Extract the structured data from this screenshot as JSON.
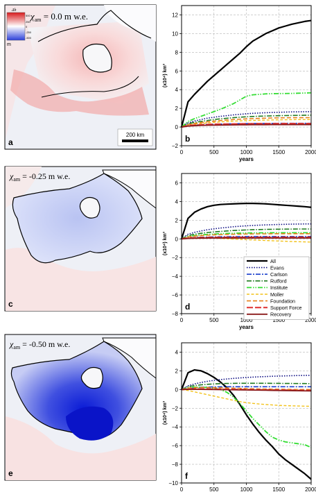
{
  "colors": {
    "All": "#000000",
    "Evans": "#0a0a80",
    "Carlson": "#1a3fcc",
    "Rutford": "#1f7a1f",
    "Institute": "#33dd33",
    "Moller": "#f2c21b",
    "Foundation": "#e6801a",
    "Support Force": "#e03a3a",
    "Recovery": "#8b1a1a"
  },
  "maps": [
    {
      "letter": "a",
      "chi_label": "χ",
      "chi_sub": "am",
      "chi_value": " = 0.0 m w.e.",
      "scalebar": "200 km",
      "colorbar": {
        "title": "Δh",
        "unit": "m",
        "ticks": [
          "500",
          "250",
          "0",
          "-250",
          "-500"
        ]
      }
    },
    {
      "letter": "c",
      "chi_label": "χ",
      "chi_sub": "am",
      "chi_value": " = -0.25 m w.e."
    },
    {
      "letter": "e",
      "chi_label": "χ",
      "chi_sub": "am",
      "chi_value": " = -0.50 m w.e."
    }
  ],
  "chart_data": [
    {
      "panel": "b",
      "type": "line",
      "xlabel": "years",
      "ylabel": "(x10⁴) km³",
      "xlim": [
        0,
        2000
      ],
      "ylim": [
        -2,
        13
      ],
      "xticks": [
        0,
        500,
        1000,
        1500,
        2000
      ],
      "yticks": [
        -2,
        0,
        2,
        4,
        6,
        8,
        10,
        12
      ],
      "grid": true,
      "x": [
        0,
        100,
        200,
        300,
        400,
        500,
        600,
        700,
        800,
        900,
        1000,
        1100,
        1200,
        1300,
        1400,
        1500,
        1600,
        1700,
        1800,
        1900,
        2000
      ],
      "series": [
        {
          "name": "All",
          "values": [
            0,
            2.7,
            3.5,
            4.2,
            4.9,
            5.5,
            6.1,
            6.7,
            7.3,
            7.9,
            8.6,
            9.2,
            9.6,
            10.0,
            10.3,
            10.6,
            10.8,
            11.0,
            11.15,
            11.3,
            11.4
          ]
        },
        {
          "name": "Evans",
          "values": [
            0,
            0.45,
            0.65,
            0.8,
            0.95,
            1.05,
            1.15,
            1.22,
            1.3,
            1.36,
            1.42,
            1.47,
            1.5,
            1.53,
            1.56,
            1.58,
            1.6,
            1.62,
            1.63,
            1.64,
            1.65
          ]
        },
        {
          "name": "Carlson",
          "values": [
            0,
            0.15,
            0.2,
            0.25,
            0.28,
            0.3,
            0.32,
            0.34,
            0.35,
            0.36,
            0.37,
            0.38,
            0.38,
            0.39,
            0.39,
            0.4,
            0.4,
            0.4,
            0.4,
            0.4,
            0.4
          ]
        },
        {
          "name": "Rutford",
          "values": [
            0,
            0.35,
            0.5,
            0.6,
            0.7,
            0.8,
            0.88,
            0.94,
            1.0,
            1.05,
            1.1,
            1.13,
            1.16,
            1.18,
            1.2,
            1.22,
            1.23,
            1.24,
            1.25,
            1.26,
            1.27
          ]
        },
        {
          "name": "Institute",
          "values": [
            0,
            0.6,
            0.9,
            1.15,
            1.4,
            1.65,
            1.9,
            2.2,
            2.5,
            2.9,
            3.3,
            3.45,
            3.5,
            3.55,
            3.57,
            3.58,
            3.59,
            3.6,
            3.62,
            3.64,
            3.66
          ]
        },
        {
          "name": "Moller",
          "values": [
            0,
            0.2,
            0.3,
            0.38,
            0.45,
            0.5,
            0.55,
            0.6,
            0.63,
            0.66,
            0.69,
            0.71,
            0.73,
            0.75,
            0.76,
            0.77,
            0.78,
            0.79,
            0.8,
            0.8,
            0.8
          ]
        },
        {
          "name": "Foundation",
          "values": [
            0,
            0.25,
            0.38,
            0.48,
            0.56,
            0.63,
            0.7,
            0.75,
            0.8,
            0.84,
            0.87,
            0.9,
            0.93,
            0.95,
            0.97,
            0.98,
            0.99,
            1.0,
            1.0,
            1.0,
            1.0
          ]
        },
        {
          "name": "Support Force",
          "values": [
            0,
            0.15,
            0.2,
            0.25,
            0.28,
            0.3,
            0.31,
            0.32,
            0.33,
            0.34,
            0.35,
            0.35,
            0.36,
            0.36,
            0.36,
            0.37,
            0.37,
            0.37,
            0.37,
            0.37,
            0.37
          ]
        },
        {
          "name": "Recovery",
          "values": [
            0,
            0.1,
            0.14,
            0.17,
            0.19,
            0.2,
            0.21,
            0.22,
            0.23,
            0.24,
            0.24,
            0.25,
            0.25,
            0.25,
            0.26,
            0.26,
            0.26,
            0.26,
            0.26,
            0.26,
            0.26
          ]
        }
      ]
    },
    {
      "panel": "d",
      "type": "line",
      "xlabel": "years",
      "ylabel": "(x10⁴) km³",
      "xlim": [
        0,
        2000
      ],
      "ylim": [
        -8,
        7
      ],
      "xticks": [
        0,
        500,
        1000,
        1500,
        2000
      ],
      "yticks": [
        -8,
        -6,
        -4,
        -2,
        0,
        2,
        4,
        6
      ],
      "grid": true,
      "legend_position": "lower-right",
      "x": [
        0,
        100,
        200,
        300,
        400,
        500,
        600,
        700,
        800,
        900,
        1000,
        1100,
        1200,
        1300,
        1400,
        1500,
        1600,
        1700,
        1800,
        1900,
        2000
      ],
      "series": [
        {
          "name": "All",
          "values": [
            0,
            2.2,
            2.85,
            3.2,
            3.45,
            3.6,
            3.68,
            3.72,
            3.75,
            3.78,
            3.8,
            3.8,
            3.78,
            3.75,
            3.7,
            3.65,
            3.6,
            3.55,
            3.5,
            3.45,
            3.38
          ]
        },
        {
          "name": "Evans",
          "values": [
            0,
            0.5,
            0.7,
            0.85,
            0.98,
            1.08,
            1.16,
            1.23,
            1.3,
            1.35,
            1.4,
            1.44,
            1.47,
            1.5,
            1.52,
            1.54,
            1.56,
            1.58,
            1.59,
            1.6,
            1.6
          ]
        },
        {
          "name": "Carlson",
          "values": [
            0,
            0.1,
            0.15,
            0.18,
            0.2,
            0.22,
            0.23,
            0.24,
            0.25,
            0.25,
            0.26,
            0.26,
            0.26,
            0.26,
            0.26,
            0.26,
            0.26,
            0.26,
            0.26,
            0.26,
            0.26
          ]
        },
        {
          "name": "Rutford",
          "values": [
            0,
            0.35,
            0.5,
            0.6,
            0.68,
            0.75,
            0.8,
            0.85,
            0.9,
            0.93,
            0.96,
            0.99,
            1.0,
            1.02,
            1.03,
            1.04,
            1.05,
            1.05,
            1.06,
            1.06,
            1.06
          ]
        },
        {
          "name": "Institute",
          "values": [
            0,
            0.25,
            0.35,
            0.42,
            0.48,
            0.52,
            0.56,
            0.58,
            0.6,
            0.62,
            0.63,
            0.64,
            0.65,
            0.65,
            0.66,
            0.66,
            0.66,
            0.66,
            0.66,
            0.66,
            0.66
          ]
        },
        {
          "name": "Moller",
          "values": [
            0,
            0.1,
            0.12,
            0.12,
            0.1,
            0.08,
            0.05,
            0.02,
            -0.02,
            -0.05,
            -0.08,
            -0.11,
            -0.14,
            -0.17,
            -0.2,
            -0.23,
            -0.25,
            -0.28,
            -0.3,
            -0.32,
            -0.34
          ]
        },
        {
          "name": "Foundation",
          "values": [
            0,
            0.2,
            0.3,
            0.36,
            0.4,
            0.43,
            0.46,
            0.48,
            0.5,
            0.51,
            0.52,
            0.53,
            0.54,
            0.54,
            0.55,
            0.55,
            0.55,
            0.55,
            0.55,
            0.55,
            0.55
          ]
        },
        {
          "name": "Support Force",
          "values": [
            0,
            0.1,
            0.12,
            0.14,
            0.15,
            0.16,
            0.16,
            0.17,
            0.17,
            0.17,
            0.17,
            0.17,
            0.17,
            0.17,
            0.17,
            0.17,
            0.17,
            0.17,
            0.17,
            0.17,
            0.17
          ]
        },
        {
          "name": "Recovery",
          "values": [
            0,
            0.05,
            0.07,
            0.08,
            0.09,
            0.1,
            0.1,
            0.1,
            0.1,
            0.1,
            0.1,
            0.1,
            0.1,
            0.1,
            0.1,
            0.1,
            0.1,
            0.1,
            0.1,
            0.1,
            0.1
          ]
        }
      ]
    },
    {
      "panel": "f",
      "type": "line",
      "xlabel": "years",
      "ylabel": "(x10⁴) km³",
      "xlim": [
        0,
        2000
      ],
      "ylim": [
        -10,
        5
      ],
      "xticks": [
        0,
        500,
        1000,
        1500,
        2000
      ],
      "yticks": [
        -10,
        -8,
        -6,
        -4,
        -2,
        0,
        2,
        4
      ],
      "grid": true,
      "x": [
        0,
        100,
        200,
        300,
        400,
        500,
        600,
        700,
        800,
        900,
        1000,
        1100,
        1200,
        1300,
        1400,
        1500,
        1600,
        1700,
        1800,
        1900,
        2000
      ],
      "series": [
        {
          "name": "All",
          "values": [
            0,
            1.8,
            2.1,
            2.0,
            1.7,
            1.3,
            0.8,
            0.2,
            -0.6,
            -1.6,
            -2.7,
            -3.7,
            -4.6,
            -5.4,
            -6.1,
            -6.9,
            -7.5,
            -8.0,
            -8.5,
            -9.0,
            -9.6
          ]
        },
        {
          "name": "Evans",
          "values": [
            0,
            0.4,
            0.6,
            0.75,
            0.88,
            0.98,
            1.06,
            1.13,
            1.19,
            1.24,
            1.29,
            1.33,
            1.36,
            1.39,
            1.42,
            1.44,
            1.46,
            1.48,
            1.5,
            1.51,
            1.52
          ]
        },
        {
          "name": "Carlson",
          "values": [
            0,
            0.15,
            0.2,
            0.24,
            0.26,
            0.28,
            0.29,
            0.3,
            0.3,
            0.3,
            0.3,
            0.3,
            0.3,
            0.3,
            0.3,
            0.3,
            0.3,
            0.3,
            0.3,
            0.3,
            0.3
          ]
        },
        {
          "name": "Rutford",
          "values": [
            0,
            0.3,
            0.42,
            0.5,
            0.56,
            0.6,
            0.63,
            0.65,
            0.66,
            0.67,
            0.67,
            0.67,
            0.67,
            0.67,
            0.66,
            0.66,
            0.65,
            0.65,
            0.64,
            0.64,
            0.63
          ]
        },
        {
          "name": "Institute",
          "values": [
            0,
            0.2,
            0.25,
            0.25,
            0.22,
            0.15,
            0.0,
            -0.3,
            -0.8,
            -1.5,
            -2.3,
            -3.1,
            -3.8,
            -4.5,
            -5.1,
            -5.4,
            -5.6,
            -5.7,
            -5.8,
            -5.9,
            -6.2
          ]
        },
        {
          "name": "Moller",
          "values": [
            0,
            -0.1,
            -0.25,
            -0.4,
            -0.55,
            -0.7,
            -0.85,
            -1.0,
            -1.15,
            -1.3,
            -1.4,
            -1.48,
            -1.55,
            -1.6,
            -1.65,
            -1.7,
            -1.72,
            -1.74,
            -1.76,
            -1.78,
            -1.8
          ]
        },
        {
          "name": "Foundation",
          "values": [
            0,
            0.15,
            0.2,
            0.22,
            0.22,
            0.2,
            0.18,
            0.16,
            0.14,
            0.12,
            0.1,
            0.08,
            0.06,
            0.05,
            0.04,
            0.03,
            0.02,
            0.01,
            0.0,
            0.0,
            0.0
          ]
        },
        {
          "name": "Support Force",
          "values": [
            0,
            0.05,
            0.06,
            0.06,
            0.05,
            0.04,
            0.03,
            0.02,
            0.01,
            0.0,
            -0.01,
            -0.02,
            -0.03,
            -0.04,
            -0.05,
            -0.06,
            -0.07,
            -0.08,
            -0.09,
            -0.1,
            -0.1
          ]
        },
        {
          "name": "Recovery",
          "values": [
            0,
            0.02,
            0.02,
            0.02,
            0.01,
            0.0,
            -0.01,
            -0.02,
            -0.03,
            -0.04,
            -0.05,
            -0.06,
            -0.07,
            -0.08,
            -0.09,
            -0.1,
            -0.11,
            -0.12,
            -0.13,
            -0.14,
            -0.15
          ]
        }
      ]
    }
  ]
}
